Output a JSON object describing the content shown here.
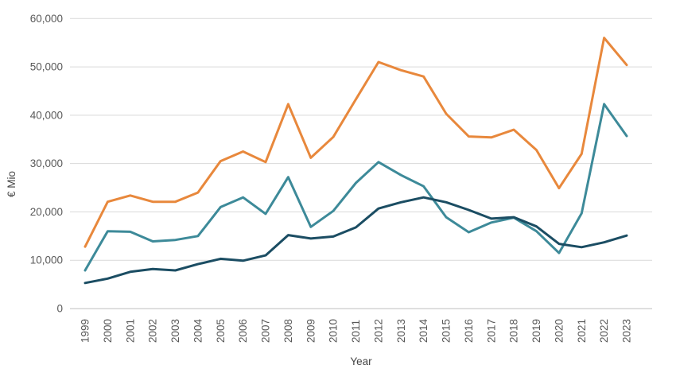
{
  "chart_data": {
    "type": "line",
    "title": "",
    "xlabel": "Year",
    "ylabel": "€ Mio",
    "x": [
      1999,
      2000,
      2001,
      2002,
      2003,
      2004,
      2005,
      2006,
      2007,
      2008,
      2009,
      2010,
      2011,
      2012,
      2013,
      2014,
      2015,
      2016,
      2017,
      2018,
      2019,
      2020,
      2021,
      2022,
      2023
    ],
    "series": [
      {
        "name": "orange-series",
        "color": "#E8883C",
        "values": [
          12800,
          22100,
          23400,
          22100,
          22100,
          24000,
          30500,
          32500,
          30300,
          42300,
          31200,
          35500,
          43300,
          51000,
          49300,
          48000,
          40300,
          35600,
          35400,
          37000,
          32800,
          24900,
          32000,
          56000,
          50400
        ]
      },
      {
        "name": "teal-series",
        "color": "#3D8A99",
        "values": [
          7900,
          16000,
          15900,
          13900,
          14200,
          15000,
          21000,
          23000,
          19600,
          27200,
          16900,
          20200,
          26000,
          30300,
          27600,
          25300,
          18900,
          15800,
          17800,
          18800,
          16000,
          11500,
          19700,
          42300,
          35700
        ]
      },
      {
        "name": "dark-blue-series",
        "color": "#1B4D63",
        "values": [
          5300,
          6200,
          7600,
          8200,
          7900,
          9200,
          10300,
          9900,
          11000,
          15200,
          14500,
          14900,
          16800,
          20700,
          22000,
          23000,
          22000,
          20400,
          18600,
          18900,
          17000,
          13400,
          12700,
          13700,
          15100
        ]
      }
    ],
    "ylim": [
      0,
      60000
    ],
    "ytick_step": 10000,
    "ytick_labels": [
      "0",
      "10,000",
      "20,000",
      "30,000",
      "40,000",
      "50,000",
      "60,000"
    ],
    "grid": "horizontal",
    "legend": "none",
    "x_tick_rotation": -90
  },
  "colors": {
    "background": "#ffffff",
    "gridline": "#D9D9D9",
    "zero_axis_line": "#BFBFBF",
    "tick_text": "#595959"
  }
}
